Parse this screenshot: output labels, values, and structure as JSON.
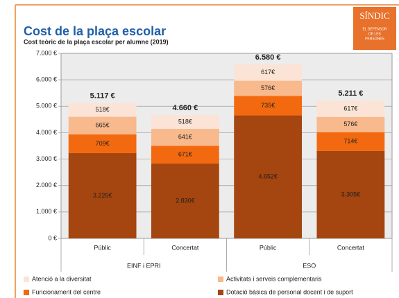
{
  "chart_data": {
    "type": "stacked_bar",
    "title": "Cost de la plaça escolar",
    "subtitle": "Cost teòric de la plaça escolar per alumne (2019)",
    "logo": [
      "SÍNDIC",
      "EL DEFENSOR",
      "DE LES",
      "PERSONES"
    ],
    "categories": [
      "Públic",
      "Concertat",
      "Públic",
      "Concertat"
    ],
    "groups": [
      "EINF i EPRI",
      "ESO"
    ],
    "series": [
      {
        "name": "Dotació bàsica de personal docent i de suport",
        "color": "#a5450f",
        "values": [
          3226,
          2830,
          4652,
          3305
        ],
        "value_labels": [
          "3.226€",
          "2.830€",
          "4.652€",
          "3.305€"
        ]
      },
      {
        "name": "Funcionament del centre",
        "color": "#f3690f",
        "values": [
          709,
          671,
          735,
          714
        ],
        "value_labels": [
          "709€",
          "671€",
          "735€",
          "714€"
        ]
      },
      {
        "name": "Activitats i serveis complementaris",
        "color": "#f8b98c",
        "values": [
          665,
          641,
          576,
          576
        ],
        "value_labels": [
          "665€",
          "641€",
          "576€",
          "576€"
        ]
      },
      {
        "name": "Atenció a la diversitat",
        "color": "#fbe4d5",
        "values": [
          518,
          518,
          617,
          617
        ],
        "value_labels": [
          "518€",
          "518€",
          "617€",
          "617€"
        ]
      }
    ],
    "totals": {
      "values": [
        5117,
        4660,
        6580,
        5211
      ],
      "value_labels": [
        "5.117 €",
        "4.660 €",
        "6.580 €",
        "5.211 €"
      ]
    },
    "ylim": [
      0,
      7000
    ],
    "yticks": [
      {
        "value": 0,
        "label": "0 €"
      },
      {
        "value": 1000,
        "label": "1.000 €"
      },
      {
        "value": 2000,
        "label": "2.000 €"
      },
      {
        "value": 3000,
        "label": "3.000 €"
      },
      {
        "value": 4000,
        "label": "4.000 €"
      },
      {
        "value": 5000,
        "label": "5.000 €"
      },
      {
        "value": 6000,
        "label": "6.000 €"
      },
      {
        "value": 7000,
        "label": "7.000 €"
      }
    ],
    "grid": true
  }
}
